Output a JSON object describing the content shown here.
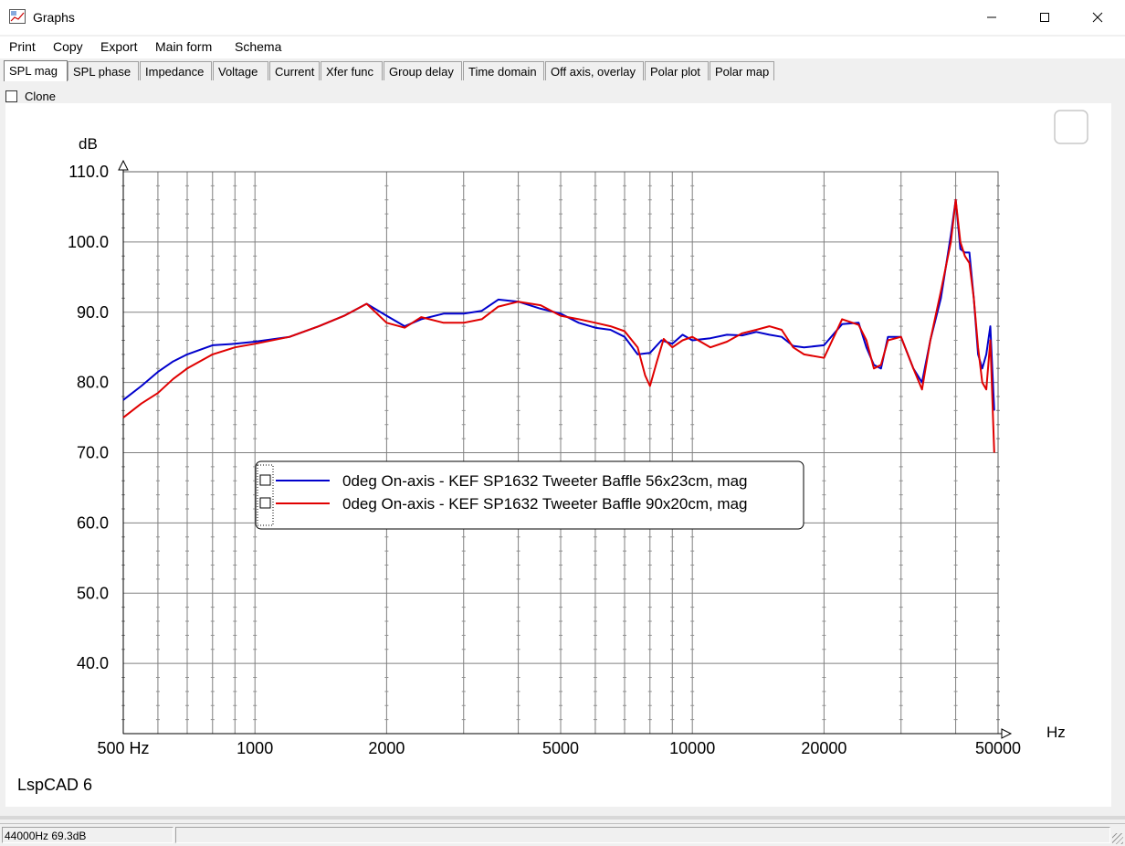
{
  "window": {
    "title": "Graphs",
    "minimize": "—",
    "maximize": "☐",
    "close": "✕"
  },
  "menu": [
    "Print",
    "Copy",
    "Export",
    "Main form",
    "Schema"
  ],
  "tabs": [
    "SPL mag",
    "SPL phase",
    "Impedance",
    "Voltage",
    "Current",
    "Xfer func",
    "Group delay",
    "Time domain",
    "Off axis, overlay",
    "Polar plot",
    "Polar map"
  ],
  "active_tab": "SPL mag",
  "clone_label": "Clone",
  "watermark": "LspCAD 6",
  "status": {
    "readout": "44000Hz 69.3dB"
  },
  "colors": {
    "blue_series": "#0000cc",
    "red_series": "#e00000",
    "grid": "#808080"
  },
  "chart_data": {
    "type": "line",
    "xscale": "log",
    "xlim": [
      500,
      50000
    ],
    "ylim": [
      30,
      110
    ],
    "ylabel": "dB",
    "xlabel": "Hz",
    "x_ticks": [
      500,
      1000,
      2000,
      5000,
      10000,
      20000,
      50000
    ],
    "x_tick_labels": [
      "500 Hz",
      "1000",
      "2000",
      "5000",
      "10000",
      "20000",
      "50000"
    ],
    "y_ticks": [
      40,
      50,
      60,
      70,
      80,
      90,
      100,
      110
    ],
    "y_tick_labels": [
      "40.0",
      "50.0",
      "60.0",
      "70.0",
      "80.0",
      "90.0",
      "100.0",
      "110.0"
    ],
    "legend_position": "center-left",
    "series": [
      {
        "name": "0deg On-axis - KEF SP1632 Tweeter Baffle 56x23cm, mag",
        "x": [
          500,
          550,
          600,
          650,
          700,
          800,
          900,
          1000,
          1200,
          1400,
          1600,
          1800,
          2000,
          2200,
          2400,
          2700,
          3000,
          3300,
          3600,
          4000,
          4500,
          5000,
          5500,
          6000,
          6500,
          7000,
          7500,
          8000,
          8500,
          9000,
          9500,
          10000,
          11000,
          12000,
          13000,
          14000,
          15000,
          16000,
          17000,
          18000,
          20000,
          22000,
          24000,
          25000,
          26000,
          27000,
          28000,
          30000,
          32000,
          33500,
          35000,
          37000,
          39000,
          40000,
          41000,
          42000,
          43000,
          44000,
          45000,
          46000,
          47000,
          48000,
          49000
        ],
        "y": [
          77.5,
          79.5,
          81.5,
          83,
          84,
          85.3,
          85.5,
          85.8,
          86.5,
          88,
          89.5,
          91.2,
          89.5,
          88,
          89,
          89.8,
          89.8,
          90.2,
          91.8,
          91.5,
          90.5,
          89.8,
          88.5,
          87.8,
          87.5,
          86.5,
          84,
          84.2,
          86,
          85.5,
          86.8,
          86,
          86.3,
          86.8,
          86.7,
          87.2,
          86.8,
          86.5,
          85.2,
          85,
          85.3,
          88.3,
          88.5,
          85,
          82.5,
          82,
          86.5,
          86.5,
          82,
          80,
          86,
          92,
          101,
          106,
          99,
          98.5,
          98.5,
          92,
          84,
          82,
          84,
          88,
          76
        ]
      },
      {
        "name": "0deg On-axis - KEF SP1632 Tweeter Baffle 90x20cm, mag",
        "x": [
          500,
          550,
          600,
          650,
          700,
          800,
          900,
          1000,
          1200,
          1400,
          1600,
          1800,
          2000,
          2200,
          2400,
          2700,
          3000,
          3300,
          3600,
          4000,
          4500,
          5000,
          5500,
          6000,
          6500,
          7000,
          7500,
          7800,
          8000,
          8300,
          8600,
          9000,
          9500,
          10000,
          11000,
          12000,
          13000,
          14000,
          15000,
          16000,
          17000,
          18000,
          20000,
          22000,
          24000,
          25000,
          26000,
          27000,
          28000,
          30000,
          32000,
          33500,
          35000,
          37000,
          39000,
          40000,
          41000,
          42000,
          43000,
          44000,
          45000,
          46000,
          47000,
          48000,
          49000
        ],
        "y": [
          75,
          77,
          78.5,
          80.5,
          82,
          84,
          85,
          85.5,
          86.5,
          88,
          89.5,
          91.2,
          88.5,
          87.8,
          89.3,
          88.5,
          88.5,
          89,
          90.8,
          91.5,
          91,
          89.5,
          89,
          88.5,
          88,
          87.3,
          85,
          81,
          79.5,
          83,
          86.2,
          85,
          86,
          86.5,
          85,
          85.8,
          87,
          87.5,
          88,
          87.5,
          85,
          84,
          83.5,
          89,
          88.2,
          86,
          82,
          82.5,
          86,
          86.5,
          82,
          79,
          86,
          93,
          100,
          106,
          100,
          98,
          97,
          92,
          85,
          80,
          79,
          86,
          70
        ]
      }
    ]
  }
}
